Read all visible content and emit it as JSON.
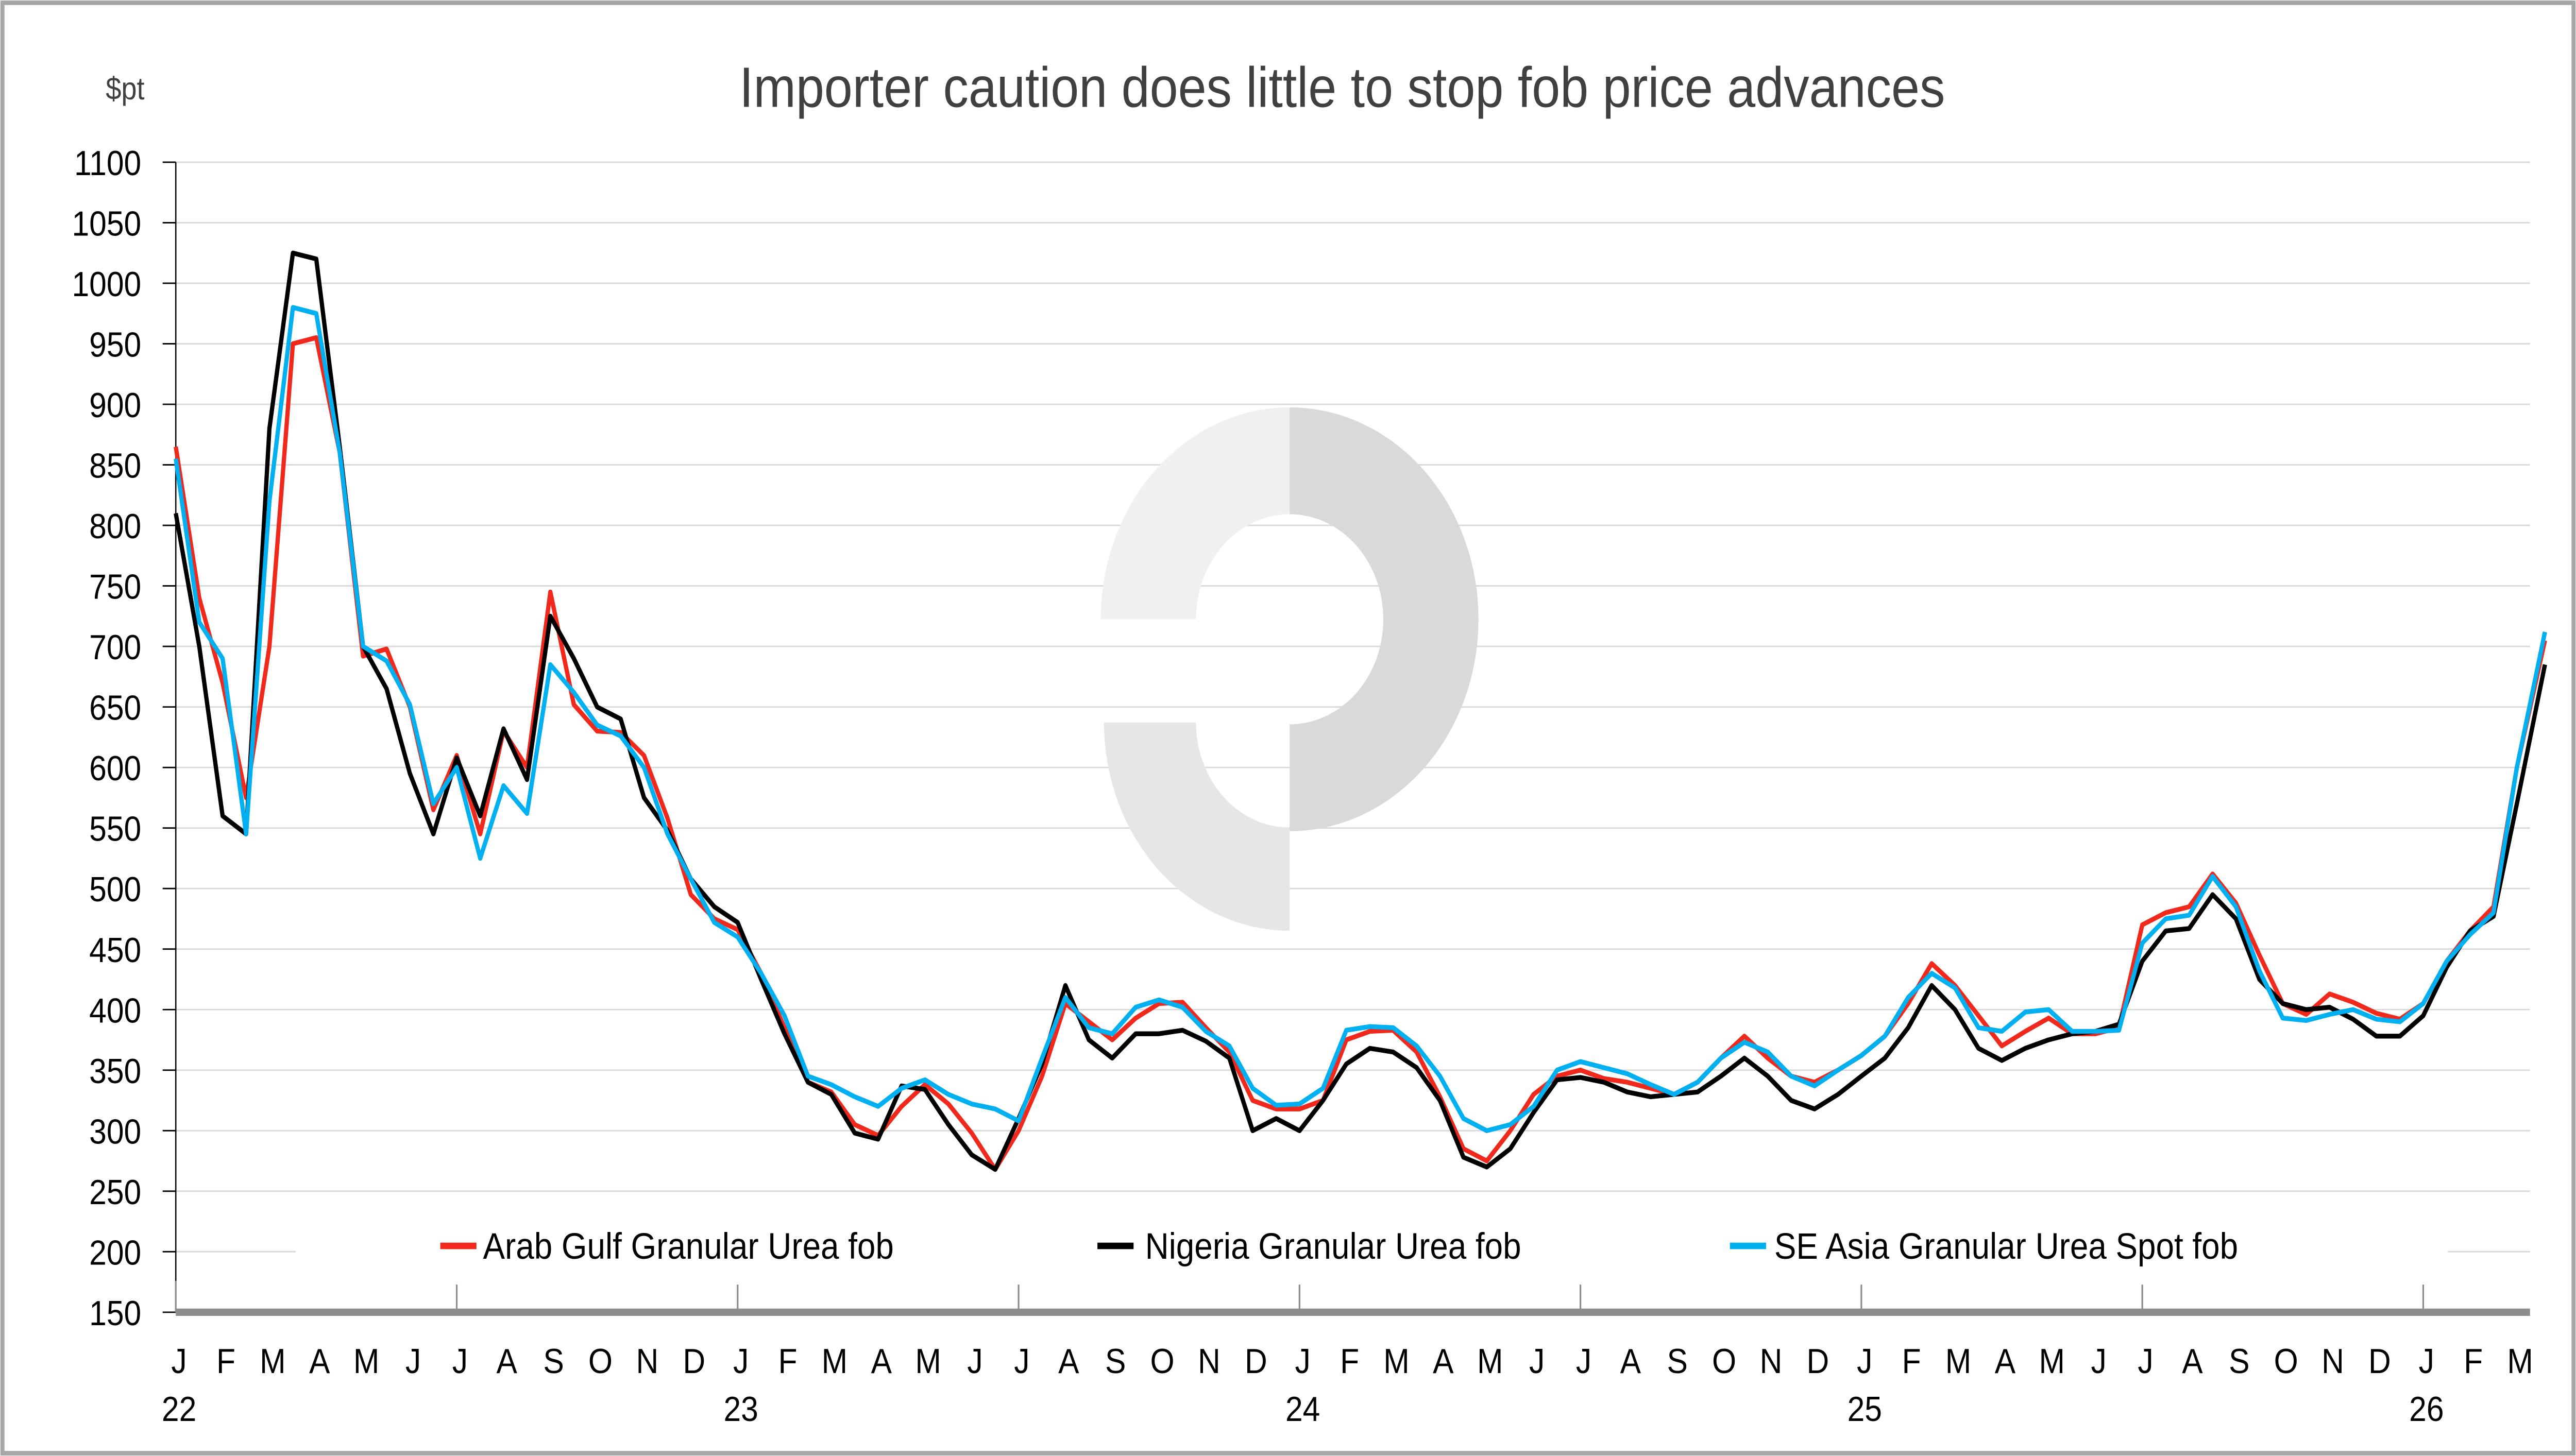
{
  "chart_data": {
    "type": "line",
    "title": "Importer caution does little to stop fob price advances",
    "ylabel": "$pt",
    "xlabel": "",
    "ylim": [
      150,
      1100
    ],
    "yticks": [
      150,
      200,
      250,
      300,
      350,
      400,
      450,
      500,
      550,
      600,
      650,
      700,
      750,
      800,
      850,
      900,
      950,
      1000,
      1050,
      1100
    ],
    "x_unit": "months since Jan 2022",
    "xlim": [
      0,
      50.6
    ],
    "month_labels": [
      "J",
      "F",
      "M",
      "A",
      "M",
      "J",
      "J",
      "A",
      "S",
      "O",
      "N",
      "D",
      "J",
      "F",
      "M",
      "A",
      "M",
      "J",
      "J",
      "A",
      "S",
      "O",
      "N",
      "D",
      "J",
      "F",
      "M",
      "A",
      "M",
      "J",
      "J",
      "A",
      "S",
      "O",
      "N",
      "D",
      "J",
      "F",
      "M",
      "A",
      "M",
      "J",
      "J",
      "A",
      "S",
      "O",
      "N",
      "D",
      "J",
      "F",
      "M"
    ],
    "year_labels": [
      "22",
      "23",
      "24",
      "25",
      "26"
    ],
    "grid": true,
    "legend_position": "bottom-inside",
    "x": [
      0,
      0.5,
      1,
      1.5,
      2,
      2.5,
      3,
      3.5,
      4,
      4.5,
      5,
      5.5,
      6,
      6.5,
      7,
      7.5,
      8,
      8.5,
      9,
      9.5,
      10,
      10.5,
      11,
      11.5,
      12,
      12.5,
      13,
      13.5,
      14,
      14.5,
      15,
      15.5,
      16,
      16.5,
      17,
      17.5,
      18,
      18.5,
      19,
      19.5,
      20,
      20.5,
      21,
      21.5,
      22,
      22.5,
      23,
      23.5,
      24,
      24.5,
      25,
      25.5,
      26,
      26.5,
      27,
      27.5,
      28,
      28.5,
      29,
      29.5,
      30,
      30.5,
      31,
      31.5,
      32,
      32.5,
      33,
      33.5,
      34,
      34.5,
      35,
      35.5,
      36,
      36.5,
      37,
      37.5,
      38,
      38.5,
      39,
      39.5,
      40,
      40.5,
      41,
      41.5,
      42,
      42.5,
      43,
      43.5,
      44,
      44.5,
      45,
      45.5,
      46,
      46.5,
      47,
      47.5,
      48,
      48.5,
      49,
      49.5,
      50,
      50.6
    ],
    "series": [
      {
        "name": "Arab Gulf Granular Urea fob",
        "color": "#f0291c",
        "values": [
          865,
          740,
          670,
          575,
          700,
          950,
          955,
          860,
          692,
          698,
          650,
          565,
          610,
          545,
          630,
          600,
          745,
          652,
          630,
          629,
          610,
          558,
          495,
          475,
          466,
          430,
          385,
          340,
          332,
          305,
          296,
          320,
          338,
          322,
          298,
          268,
          300,
          345,
          405,
          390,
          375,
          393,
          405,
          406,
          385,
          365,
          325,
          318,
          318,
          325,
          375,
          382,
          383,
          365,
          328,
          285,
          275,
          300,
          330,
          345,
          350,
          343,
          340,
          335,
          330,
          340,
          360,
          378,
          360,
          345,
          340,
          350,
          362,
          378,
          405,
          438,
          420,
          395,
          370,
          382,
          393,
          380,
          380,
          385,
          470,
          480,
          485,
          512,
          488,
          445,
          405,
          396,
          413,
          406,
          397,
          392,
          405,
          440,
          465,
          485,
          600,
          705
        ]
      },
      {
        "name": "Nigeria Granular Urea fob",
        "color": "#000000",
        "values": [
          810,
          700,
          560,
          545,
          880,
          1025,
          1020,
          865,
          700,
          665,
          595,
          545,
          608,
          560,
          632,
          590,
          725,
          690,
          650,
          640,
          575,
          548,
          508,
          485,
          472,
          425,
          380,
          340,
          330,
          298,
          293,
          337,
          334,
          305,
          280,
          268,
          310,
          355,
          420,
          375,
          360,
          380,
          380,
          383,
          374,
          360,
          300,
          310,
          300,
          325,
          355,
          368,
          365,
          352,
          325,
          278,
          270,
          285,
          315,
          342,
          344,
          340,
          332,
          328,
          330,
          332,
          345,
          360,
          345,
          325,
          318,
          330,
          345,
          360,
          385,
          420,
          400,
          368,
          358,
          368,
          375,
          380,
          382,
          388,
          440,
          465,
          467,
          495,
          475,
          425,
          405,
          400,
          402,
          392,
          378,
          378,
          395,
          435,
          465,
          477,
          570,
          685
        ]
      },
      {
        "name": "SE Asia Granular Urea Spot fob",
        "color": "#00b0f0",
        "values": [
          855,
          720,
          690,
          545,
          820,
          980,
          975,
          860,
          700,
          688,
          652,
          570,
          600,
          525,
          585,
          562,
          685,
          662,
          635,
          626,
          600,
          545,
          508,
          472,
          460,
          430,
          395,
          345,
          338,
          328,
          320,
          335,
          342,
          330,
          322,
          318,
          308,
          360,
          410,
          385,
          380,
          402,
          408,
          402,
          382,
          370,
          335,
          321,
          322,
          335,
          383,
          386,
          385,
          370,
          345,
          310,
          300,
          305,
          320,
          350,
          357,
          352,
          347,
          338,
          330,
          340,
          360,
          373,
          365,
          345,
          337,
          350,
          362,
          378,
          410,
          430,
          418,
          385,
          382,
          398,
          400,
          382,
          382,
          383,
          455,
          475,
          478,
          510,
          485,
          432,
          393,
          391,
          396,
          400,
          392,
          390,
          405,
          440,
          462,
          480,
          600,
          712
        ]
      }
    ]
  },
  "colors": {
    "grid": "#d9d9d9",
    "axis": "#8c8c8c",
    "frame": "#a6a6a6",
    "watermark_dark": "#d9d9d9",
    "watermark_mid": "#e6e6e6",
    "watermark_light": "#f0f0f0"
  }
}
